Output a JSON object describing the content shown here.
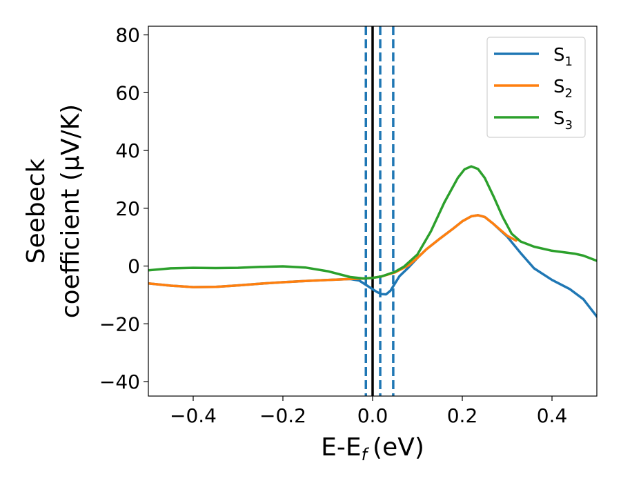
{
  "chart_data": {
    "type": "line",
    "xlabel": "E-E",
    "xlabel_sub": "f",
    "xlabel_unit": "(eV)",
    "ylabel_line1": "Seebeck",
    "ylabel_line2": "coefficient  (μV/K)",
    "xlim": [
      -0.5,
      0.5
    ],
    "ylim": [
      -45,
      83
    ],
    "x_ticks": [
      -0.4,
      -0.2,
      0.0,
      0.2,
      0.4
    ],
    "x_tick_labels": [
      "−0.4",
      "−0.2",
      "0.0",
      "0.2",
      "0.4"
    ],
    "y_ticks": [
      -40,
      -20,
      0,
      20,
      40,
      60,
      80
    ],
    "y_tick_labels": [
      "−40",
      "−20",
      "0",
      "20",
      "40",
      "60",
      "80"
    ],
    "grid": false,
    "legend_position": "top-right",
    "vertical_lines": [
      {
        "x": 0.0,
        "style": "solid",
        "color": "#000000"
      },
      {
        "x": -0.015,
        "style": "dashed",
        "color": "#1f77b4"
      },
      {
        "x": 0.017,
        "style": "dashed",
        "color": "#1f77b4"
      },
      {
        "x": 0.046,
        "style": "dashed",
        "color": "#1f77b4"
      }
    ],
    "series": [
      {
        "name": "S",
        "sub": "1",
        "color": "#1f77b4",
        "points": [
          [
            -0.5,
            -6
          ],
          [
            -0.45,
            -6.8
          ],
          [
            -0.4,
            -7.3
          ],
          [
            -0.35,
            -7.2
          ],
          [
            -0.3,
            -6.7
          ],
          [
            -0.25,
            -6.1
          ],
          [
            -0.2,
            -5.6
          ],
          [
            -0.15,
            -5.2
          ],
          [
            -0.1,
            -4.8
          ],
          [
            -0.05,
            -4.5
          ],
          [
            -0.03,
            -5
          ],
          [
            -0.01,
            -7
          ],
          [
            0.0,
            -8
          ],
          [
            0.01,
            -9
          ],
          [
            0.02,
            -9.7
          ],
          [
            0.03,
            -9.8
          ],
          [
            0.04,
            -8.5
          ],
          [
            0.05,
            -6
          ],
          [
            0.06,
            -3.5
          ],
          [
            0.08,
            -0.5
          ],
          [
            0.1,
            2.8
          ],
          [
            0.12,
            5.8
          ],
          [
            0.15,
            9.5
          ],
          [
            0.18,
            13
          ],
          [
            0.2,
            15.5
          ],
          [
            0.22,
            17.2
          ],
          [
            0.235,
            17.6
          ],
          [
            0.25,
            17
          ],
          [
            0.27,
            14.5
          ],
          [
            0.3,
            10.2
          ],
          [
            0.33,
            4.5
          ],
          [
            0.36,
            -0.8
          ],
          [
            0.4,
            -4.8
          ],
          [
            0.44,
            -8
          ],
          [
            0.47,
            -11.5
          ],
          [
            0.5,
            -17.5
          ]
        ]
      },
      {
        "name": "S",
        "sub": "2",
        "color": "#ff7f0e",
        "points": [
          [
            -0.5,
            -6
          ],
          [
            -0.45,
            -6.8
          ],
          [
            -0.4,
            -7.3
          ],
          [
            -0.35,
            -7.2
          ],
          [
            -0.3,
            -6.7
          ],
          [
            -0.25,
            -6.1
          ],
          [
            -0.2,
            -5.6
          ],
          [
            -0.15,
            -5.2
          ],
          [
            -0.1,
            -4.8
          ],
          [
            -0.05,
            -4.5
          ],
          [
            -0.02,
            -4.3
          ],
          [
            0.0,
            -4.1
          ],
          [
            0.02,
            -3.6
          ],
          [
            0.05,
            -2.2
          ],
          [
            0.08,
            0.2
          ],
          [
            0.1,
            2.8
          ],
          [
            0.12,
            5.8
          ],
          [
            0.15,
            9.5
          ],
          [
            0.18,
            13
          ],
          [
            0.2,
            15.5
          ],
          [
            0.22,
            17.2
          ],
          [
            0.235,
            17.6
          ],
          [
            0.25,
            17
          ],
          [
            0.27,
            14.5
          ],
          [
            0.3,
            10.5
          ],
          [
            0.32,
            8.8
          ]
        ]
      },
      {
        "name": "S",
        "sub": "3",
        "color": "#2ca02c",
        "points": [
          [
            -0.5,
            -1.5
          ],
          [
            -0.45,
            -0.8
          ],
          [
            -0.4,
            -0.6
          ],
          [
            -0.35,
            -0.7
          ],
          [
            -0.3,
            -0.6
          ],
          [
            -0.25,
            -0.3
          ],
          [
            -0.2,
            -0.1
          ],
          [
            -0.15,
            -0.5
          ],
          [
            -0.1,
            -1.8
          ],
          [
            -0.05,
            -3.8
          ],
          [
            -0.02,
            -4.3
          ],
          [
            0.0,
            -4.1
          ],
          [
            0.02,
            -3.6
          ],
          [
            0.05,
            -2
          ],
          [
            0.07,
            -0.2
          ],
          [
            0.1,
            4
          ],
          [
            0.13,
            12
          ],
          [
            0.16,
            22
          ],
          [
            0.19,
            30.5
          ],
          [
            0.205,
            33.5
          ],
          [
            0.22,
            34.5
          ],
          [
            0.235,
            33.6
          ],
          [
            0.25,
            30.5
          ],
          [
            0.27,
            24
          ],
          [
            0.29,
            17
          ],
          [
            0.31,
            11.2
          ],
          [
            0.33,
            8.5
          ],
          [
            0.36,
            6.7
          ],
          [
            0.4,
            5.3
          ],
          [
            0.45,
            4.3
          ],
          [
            0.47,
            3.6
          ],
          [
            0.5,
            1.8
          ]
        ]
      }
    ]
  }
}
